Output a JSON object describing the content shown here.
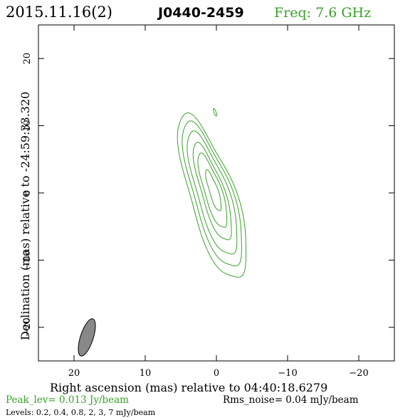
{
  "header": {
    "date": "2015.11.16(2)",
    "source": "J0440-2459",
    "freq": "Freq: 7.6 GHz"
  },
  "axes": {
    "xlabel": "Right ascension (mas) relative to 04:40:18.6279",
    "ylabel": "Declination (mas) relative to -24:59:33.320"
  },
  "footer": {
    "peak": "Peak_lev=  0.013 Jy/beam",
    "rms": "Rms_noise= 0.04 mJy/beam",
    "levels": "Levels: 0.2,  0.4,  0.8,    2,    3,    7  mJy/beam"
  },
  "colors": {
    "contour": "#3aa02a",
    "text": "#000000",
    "beam": "#888888"
  },
  "chart_data": {
    "type": "contour",
    "title": "J0440-2459",
    "xlabel": "Right ascension (mas) relative to 04:40:18.6279",
    "ylabel": "Declination (mas) relative to -24:59:33.320",
    "xlim": [
      25,
      -25
    ],
    "ylim": [
      -25,
      25
    ],
    "x_ticks": [
      20,
      10,
      0,
      -10,
      -20
    ],
    "y_ticks": [
      -20,
      -10,
      0,
      10,
      20
    ],
    "contour_levels_mJy": [
      0.2,
      0.4,
      0.8,
      2,
      3,
      7
    ],
    "peak_Jy_per_beam": 0.013,
    "rms_mJy_per_beam": 0.04,
    "contours": [
      {
        "level": 0.2,
        "cx": 0.5,
        "cy": -0.8,
        "a": 3.2,
        "b": 12.8,
        "angle_deg": 18
      },
      {
        "level": 0.4,
        "cx": 0.5,
        "cy": -0.5,
        "a": 2.7,
        "b": 11.3,
        "angle_deg": 18
      },
      {
        "level": 0.8,
        "cx": 0.5,
        "cy": -0.3,
        "a": 2.2,
        "b": 9.6,
        "angle_deg": 18
      },
      {
        "level": 2,
        "cx": 0.5,
        "cy": 0.0,
        "a": 1.6,
        "b": 7.6,
        "angle_deg": 18
      },
      {
        "level": 3,
        "cx": 0.5,
        "cy": 0.2,
        "a": 1.2,
        "b": 5.8,
        "angle_deg": 18
      },
      {
        "level": 7,
        "cx": 0.4,
        "cy": 0.3,
        "a": 0.6,
        "b": 3.2,
        "angle_deg": 18
      }
    ],
    "extra_components": [
      {
        "level": 0.2,
        "cx": 0.2,
        "cy": 12.0,
        "a": 0.15,
        "b": 0.6,
        "angle_deg": 20
      }
    ],
    "beam": {
      "cx": 18.2,
      "cy": -21.5,
      "a": 0.9,
      "b": 2.9,
      "angle_deg": 18
    }
  }
}
